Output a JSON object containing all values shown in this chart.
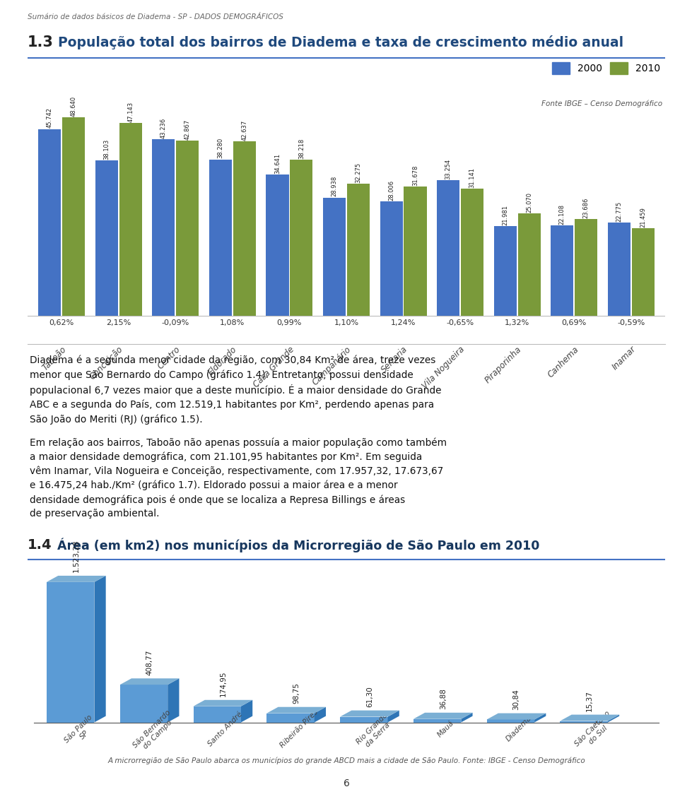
{
  "page_header": "Sumário de dados básicos de Diadema - SP - DADOS DEMOGRÁFICOS",
  "chart1": {
    "title_number": "1.3",
    "title_text": "População total dos bairros de Diadema e taxa de crescimento médio anual",
    "categories": [
      "Taboão",
      "Conceição",
      "Centro",
      "Eldorado",
      "Casa Grande",
      "Campanário",
      "Serraria",
      "Vila Nogueira",
      "Piraporinha",
      "Canhema",
      "Inamar"
    ],
    "values_2000": [
      45742,
      38103,
      43236,
      38280,
      34641,
      28938,
      28006,
      33254,
      21981,
      22108,
      22775
    ],
    "values_2010": [
      48640,
      47143,
      42867,
      42637,
      38218,
      32275,
      31678,
      31141,
      25070,
      23686,
      21459
    ],
    "growth_rates": [
      "0,62%",
      "2,15%",
      "-0,09%",
      "1,08%",
      "0,99%",
      "1,10%",
      "1,24%",
      "-0,65%",
      "1,32%",
      "0,69%",
      "-0,59%"
    ],
    "color_2000": "#4472C4",
    "color_2010": "#7A9A3A",
    "legend_2000": "2000",
    "legend_2010": "2010",
    "source": "Fonte IBGE – Censo Demográfico"
  },
  "para1": "Diadema é a segunda menor cidade da região, com 30,84 Km² de área, treze vezes\nmenor que São Bernardo do Campo (gráfico 1.4). Entretanto, possui densidade\npopulacional 6,7 vezes maior que a deste município. É a maior densidade do Grande\nABC e a segunda do País, com 12.519,1 habitantes por Km², perdendo apenas para\nSão João do Meriti (RJ) (gráfico 1.5).",
  "para2": "Em relação aos bairros, Taboão não apenas possuía a maior população como também\na maior densidade demográfica, com 21.101,95 habitantes por Km². Em seguida\nvêm Inamar, Vila Nogueira e Conceição, respectivamente, com 17.957,32, 17.673,67\ne 16.475,24 hab./Km² (gráfico 1.7). Eldorado possui a maior área e a menor\ndensidade demográfica pois é onde que se localiza a Represa Billings e áreas\nde preservação ambiental.",
  "chart2": {
    "title_number": "1.4",
    "title_text": "Área (em km2) nos municípios da Microrregião de São Paulo em 2010",
    "categories": [
      "São Paulo\nSP",
      "São Bernardo\ndo Campo",
      "Santo André",
      "Ribeirão Pires",
      "Rio Grande\nda Serra",
      "Mauá",
      "Diadema",
      "São Caetano\ndo Sul"
    ],
    "values": [
      1523.28,
      408.77,
      174.95,
      98.75,
      61.3,
      36.88,
      30.84,
      15.37
    ],
    "labels": [
      "1.523,28",
      "408,77",
      "174,95",
      "98,75",
      "61,30",
      "36,88",
      "30,84",
      "15,37"
    ],
    "bar_color_face": "#5B9BD5",
    "bar_color_top": "#7BAFD4",
    "bar_color_side": "#2E75B6",
    "footnote": "A microrregião de São Paulo abarca os municípios do grande ABCD mais a cidade de São Paulo. Fonte: IBGE - Censo Demográfico"
  },
  "page_number": "6",
  "bg_color": "#FFFFFF",
  "text_bg_color": "#E0E0E0",
  "header_color": "#666666",
  "chart1_title_color_num": "#222222",
  "chart1_title_color_text": "#1F497D",
  "chart2_title_color": "#17375E",
  "divider_color": "#4472C4"
}
